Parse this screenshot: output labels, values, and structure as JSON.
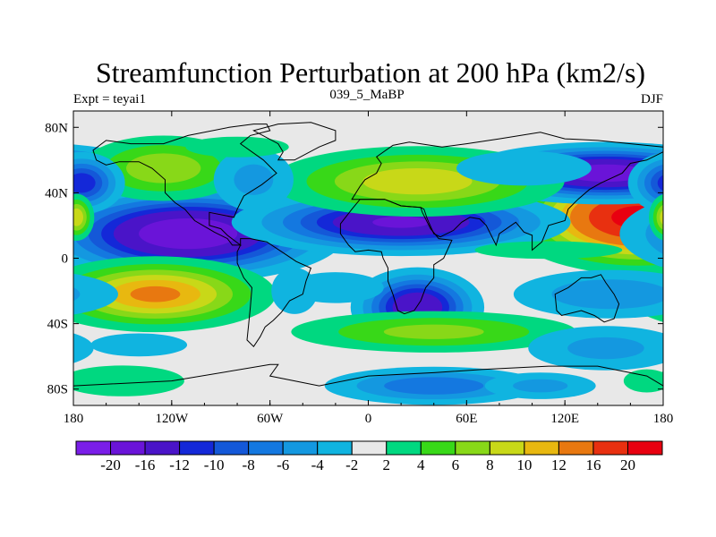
{
  "chart_data": {
    "type": "heatmap",
    "title": "Streamfunction Perturbation at 200 hPa (km2/s)",
    "left_label": "Expt = teyai1",
    "center_label": "039_5_MaBP",
    "right_label": "DJF",
    "xlabel": "",
    "ylabel": "",
    "xlim": [
      -180,
      180
    ],
    "ylim": [
      -90,
      90
    ],
    "x_ticks": [
      {
        "value": -180,
        "label": "180"
      },
      {
        "value": -120,
        "label": "120W"
      },
      {
        "value": -60,
        "label": "60W"
      },
      {
        "value": 0,
        "label": "0"
      },
      {
        "value": 60,
        "label": "60E"
      },
      {
        "value": 120,
        "label": "120E"
      },
      {
        "value": 180,
        "label": "180"
      }
    ],
    "y_ticks": [
      {
        "value": 80,
        "label": "80N"
      },
      {
        "value": 40,
        "label": "40N"
      },
      {
        "value": 0,
        "label": "0"
      },
      {
        "value": -40,
        "label": "40S"
      },
      {
        "value": -80,
        "label": "80S"
      }
    ],
    "levels": [
      -20,
      -16,
      -12,
      -10,
      -8,
      -6,
      -4,
      -2,
      2,
      4,
      6,
      8,
      10,
      12,
      16,
      20
    ],
    "colors": [
      "#7a1ee8",
      "#6a14d8",
      "#4a14c8",
      "#1428d8",
      "#1458d8",
      "#1478e0",
      "#1498e0",
      "#10b4e0",
      "#e8e8e8",
      "#00d880",
      "#38d818",
      "#88d818",
      "#c8d818",
      "#e8b810",
      "#e87810",
      "#e83010",
      "#e80010"
    ],
    "features": [
      {
        "lon": 165,
        "lat": 25,
        "rx": 38,
        "ry": 16,
        "value": 22
      },
      {
        "lon": -110,
        "lat": 15,
        "rx": 45,
        "ry": 14,
        "value": -20
      },
      {
        "lon": 145,
        "lat": 52,
        "rx": 42,
        "ry": 9,
        "value": -19
      },
      {
        "lon": 20,
        "lat": 22,
        "rx": 50,
        "ry": 10,
        "value": -17
      },
      {
        "lon": 30,
        "lat": -30,
        "rx": 20,
        "ry": 12,
        "value": -16
      },
      {
        "lon": -130,
        "lat": -22,
        "rx": 38,
        "ry": 12,
        "value": 13
      },
      {
        "lon": 30,
        "lat": 47,
        "rx": 50,
        "ry": 12,
        "value": 10
      },
      {
        "lon": -125,
        "lat": 55,
        "rx": 30,
        "ry": 12,
        "value": 8
      },
      {
        "lon": -175,
        "lat": 46,
        "rx": 14,
        "ry": 10,
        "value": -12
      },
      {
        "lon": -178,
        "lat": 25,
        "rx": 6,
        "ry": 8,
        "value": 10
      },
      {
        "lon": 148,
        "lat": -22,
        "rx": 40,
        "ry": 10,
        "value": -6
      },
      {
        "lon": 40,
        "lat": -45,
        "rx": 55,
        "ry": 8,
        "value": 7
      },
      {
        "lon": -140,
        "lat": -53,
        "rx": 25,
        "ry": 6,
        "value": -4
      },
      {
        "lon": -150,
        "lat": -75,
        "rx": 32,
        "ry": 8,
        "value": 4
      },
      {
        "lon": 40,
        "lat": -78,
        "rx": 40,
        "ry": 7,
        "value": -8
      },
      {
        "lon": 145,
        "lat": -55,
        "rx": 35,
        "ry": 10,
        "value": -5
      },
      {
        "lon": -70,
        "lat": 48,
        "rx": 18,
        "ry": 14,
        "value": -5
      },
      {
        "lon": -20,
        "lat": -18,
        "rx": 25,
        "ry": 8,
        "value": -4
      },
      {
        "lon": -45,
        "lat": -20,
        "rx": 12,
        "ry": 12,
        "value": -4
      },
      {
        "lon": 110,
        "lat": 5,
        "rx": 50,
        "ry": 6,
        "value": 3
      },
      {
        "lon": 95,
        "lat": 55,
        "rx": 35,
        "ry": 9,
        "value": -4
      },
      {
        "lon": -80,
        "lat": 68,
        "rx": 35,
        "ry": 7,
        "value": 3
      },
      {
        "lon": 105,
        "lat": -78,
        "rx": 25,
        "ry": 6,
        "value": -5
      },
      {
        "lon": 170,
        "lat": -75,
        "rx": 12,
        "ry": 6,
        "value": 4
      }
    ],
    "land_outlines": [
      [
        [
          -168,
          66
        ],
        [
          -160,
          72
        ],
        [
          -145,
          70
        ],
        [
          -125,
          70
        ],
        [
          -110,
          75
        ],
        [
          -85,
          80
        ],
        [
          -70,
          82
        ],
        [
          -62,
          82
        ],
        [
          -60,
          78
        ],
        [
          -72,
          75
        ],
        [
          -78,
          70
        ],
        [
          -64,
          60
        ],
        [
          -56,
          52
        ],
        [
          -65,
          45
        ],
        [
          -76,
          38
        ],
        [
          -80,
          30
        ],
        [
          -82,
          25
        ],
        [
          -97,
          28
        ],
        [
          -97,
          20
        ],
        [
          -90,
          18
        ],
        [
          -86,
          14
        ],
        [
          -78,
          8
        ],
        [
          -83,
          8
        ],
        [
          -86,
          12
        ],
        [
          -94,
          16
        ],
        [
          -106,
          23
        ],
        [
          -112,
          30
        ],
        [
          -118,
          34
        ],
        [
          -124,
          40
        ],
        [
          -124,
          48
        ],
        [
          -132,
          55
        ],
        [
          -140,
          59
        ],
        [
          -152,
          59
        ],
        [
          -160,
          57
        ],
        [
          -166,
          60
        ],
        [
          -168,
          66
        ]
      ],
      [
        [
          -78,
          12
        ],
        [
          -72,
          12
        ],
        [
          -62,
          10
        ],
        [
          -50,
          2
        ],
        [
          -44,
          -2
        ],
        [
          -35,
          -6
        ],
        [
          -38,
          -14
        ],
        [
          -40,
          -22
        ],
        [
          -48,
          -26
        ],
        [
          -53,
          -33
        ],
        [
          -58,
          -38
        ],
        [
          -63,
          -42
        ],
        [
          -66,
          -48
        ],
        [
          -70,
          -54
        ],
        [
          -74,
          -50
        ],
        [
          -73,
          -40
        ],
        [
          -72,
          -30
        ],
        [
          -71,
          -18
        ],
        [
          -76,
          -12
        ],
        [
          -80,
          -3
        ],
        [
          -80,
          4
        ],
        [
          -78,
          8
        ],
        [
          -78,
          12
        ]
      ],
      [
        [
          -10,
          36
        ],
        [
          -5,
          44
        ],
        [
          -2,
          48
        ],
        [
          5,
          52
        ],
        [
          8,
          58
        ],
        [
          5,
          62
        ],
        [
          15,
          69
        ],
        [
          25,
          71
        ],
        [
          45,
          68
        ],
        [
          60,
          70
        ],
        [
          80,
          73
        ],
        [
          105,
          77
        ],
        [
          120,
          73
        ],
        [
          140,
          72
        ],
        [
          160,
          70
        ],
        [
          180,
          68
        ],
        [
          180,
          65
        ],
        [
          170,
          60
        ],
        [
          160,
          58
        ],
        [
          155,
          52
        ],
        [
          142,
          46
        ],
        [
          135,
          42
        ],
        [
          128,
          36
        ],
        [
          122,
          30
        ],
        [
          120,
          23
        ],
        [
          110,
          20
        ],
        [
          106,
          10
        ],
        [
          100,
          5
        ],
        [
          100,
          14
        ],
        [
          95,
          16
        ],
        [
          90,
          22
        ],
        [
          80,
          15
        ],
        [
          78,
          8
        ],
        [
          72,
          20
        ],
        [
          68,
          24
        ],
        [
          62,
          25
        ],
        [
          57,
          22
        ],
        [
          52,
          17
        ],
        [
          44,
          13
        ],
        [
          40,
          15
        ],
        [
          36,
          24
        ],
        [
          34,
          30
        ],
        [
          32,
          31
        ],
        [
          20,
          32
        ],
        [
          10,
          36
        ],
        [
          0,
          36
        ],
        [
          -10,
          36
        ]
      ],
      [
        [
          -17,
          21
        ],
        [
          -17,
          15
        ],
        [
          -12,
          8
        ],
        [
          -8,
          4
        ],
        [
          0,
          5
        ],
        [
          8,
          4
        ],
        [
          9,
          0
        ],
        [
          12,
          -6
        ],
        [
          12,
          -14
        ],
        [
          15,
          -22
        ],
        [
          18,
          -32
        ],
        [
          22,
          -34
        ],
        [
          28,
          -32
        ],
        [
          32,
          -26
        ],
        [
          35,
          -18
        ],
        [
          40,
          -12
        ],
        [
          40,
          -4
        ],
        [
          46,
          0
        ],
        [
          51,
          11
        ],
        [
          43,
          12
        ],
        [
          38,
          18
        ],
        [
          33,
          28
        ],
        [
          32,
          31
        ],
        [
          20,
          32
        ],
        [
          10,
          36
        ],
        [
          -5,
          36
        ],
        [
          -10,
          30
        ],
        [
          -17,
          21
        ]
      ],
      [
        [
          114,
          -22
        ],
        [
          122,
          -18
        ],
        [
          130,
          -12
        ],
        [
          136,
          -12
        ],
        [
          142,
          -10
        ],
        [
          145,
          -15
        ],
        [
          150,
          -22
        ],
        [
          153,
          -28
        ],
        [
          150,
          -37
        ],
        [
          144,
          -39
        ],
        [
          138,
          -35
        ],
        [
          130,
          -32
        ],
        [
          118,
          -35
        ],
        [
          115,
          -32
        ],
        [
          114,
          -22
        ]
      ],
      [
        [
          -55,
          60
        ],
        [
          -45,
          60
        ],
        [
          -30,
          68
        ],
        [
          -20,
          72
        ],
        [
          -20,
          78
        ],
        [
          -35,
          83
        ],
        [
          -55,
          82
        ],
        [
          -70,
          78
        ],
        [
          -55,
          70
        ],
        [
          -52,
          65
        ],
        [
          -55,
          60
        ]
      ],
      [
        [
          -180,
          -78
        ],
        [
          -120,
          -75
        ],
        [
          -60,
          -65
        ],
        [
          -55,
          -65
        ],
        [
          -60,
          -72
        ],
        [
          -30,
          -78
        ],
        [
          0,
          -72
        ],
        [
          40,
          -70
        ],
        [
          70,
          -68
        ],
        [
          110,
          -66
        ],
        [
          140,
          -66
        ],
        [
          170,
          -72
        ],
        [
          180,
          -78
        ],
        [
          180,
          -90
        ],
        [
          -180,
          -90
        ],
        [
          -180,
          -78
        ]
      ]
    ]
  }
}
